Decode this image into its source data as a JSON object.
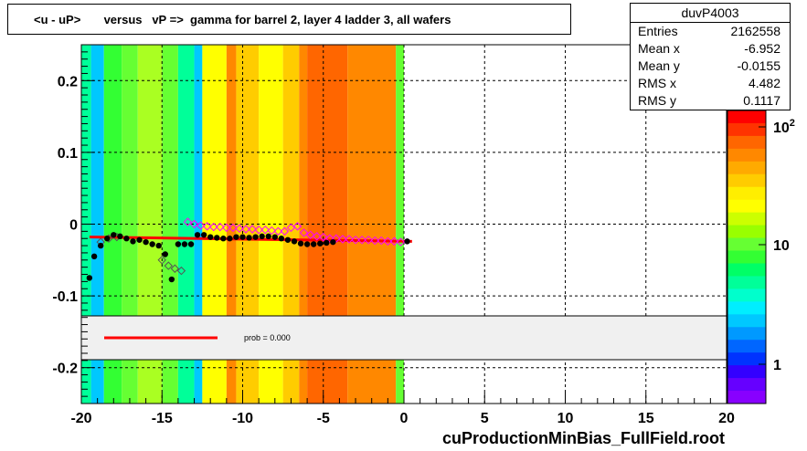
{
  "title": "<u - uP>       versus   vP =>  gamma for barrel 2, layer 4 ladder 3, all wafers",
  "stats": {
    "name": "duvP4003",
    "rows": [
      {
        "label": "Entries",
        "value": "2162558"
      },
      {
        "label": "Mean x",
        "value": "-6.952"
      },
      {
        "label": "Mean y",
        "value": "-0.0155"
      },
      {
        "label": "RMS x",
        "value": "4.482"
      },
      {
        "label": "RMS y",
        "value": "0.1117"
      }
    ]
  },
  "legend_text": "prob = 0.000",
  "footer": "cuProductionMinBias_FullField.root",
  "colors": {
    "fit_line": "#ff0000",
    "profile_black": "#000000",
    "profile_open": "#ff00ff"
  },
  "chart_data": {
    "type": "heatmap",
    "xlim": [
      -20,
      20
    ],
    "ylim": [
      -0.25,
      0.25
    ],
    "x_ticks": [
      "-20",
      "-15",
      "-10",
      "-5",
      "0",
      "5",
      "10",
      "15",
      "20"
    ],
    "y_ticks": [
      "0.2",
      "0.1",
      "0",
      "-0.1",
      "-0.2"
    ],
    "z_scale": "log",
    "z_ticks": [
      "1",
      "10",
      "10^2"
    ],
    "grid": true,
    "heat_columns": [
      {
        "x0": -20.0,
        "x1": -19.4,
        "color": "#00ff99"
      },
      {
        "x0": -19.4,
        "x1": -18.6,
        "color": "#00c8ff"
      },
      {
        "x0": -18.6,
        "x1": -17.5,
        "color": "#33ff33"
      },
      {
        "x0": -17.5,
        "x1": -16.5,
        "color": "#66ff33"
      },
      {
        "x0": -16.5,
        "x1": -15.0,
        "color": "#aaff22"
      },
      {
        "x0": -15.0,
        "x1": -14.0,
        "color": "#66ff33"
      },
      {
        "x0": -14.0,
        "x1": -13.0,
        "color": "#00ff99"
      },
      {
        "x0": -13.0,
        "x1": -12.5,
        "color": "#00c8ff"
      },
      {
        "x0": -12.5,
        "x1": -11.0,
        "color": "#ffff00"
      },
      {
        "x0": -11.0,
        "x1": -10.4,
        "color": "#ff8800"
      },
      {
        "x0": -10.4,
        "x1": -9.0,
        "color": "#ffcc00"
      },
      {
        "x0": -9.0,
        "x1": -7.5,
        "color": "#ffff00"
      },
      {
        "x0": -7.5,
        "x1": -6.5,
        "color": "#ffcc00"
      },
      {
        "x0": -6.5,
        "x1": -6.0,
        "color": "#ff8800"
      },
      {
        "x0": -6.0,
        "x1": -3.5,
        "color": "#ff6600"
      },
      {
        "x0": -3.5,
        "x1": -0.5,
        "color": "#ff8800"
      },
      {
        "x0": -0.5,
        "x1": 0.0,
        "color": "#66ff33"
      }
    ],
    "series": [
      {
        "name": "profile_filled",
        "x": [
          -19.5,
          -19.2,
          -18.8,
          -18.4,
          -18.0,
          -17.6,
          -17.2,
          -16.8,
          -16.4,
          -16.0,
          -15.6,
          -15.2,
          -14.8,
          -14.4,
          -14.0,
          -13.6,
          -13.2,
          -12.8,
          -12.4,
          -12.0,
          -11.6,
          -11.2,
          -10.8,
          -10.4,
          -10.0,
          -9.6,
          -9.2,
          -8.8,
          -8.4,
          -8.0,
          -7.6,
          -7.2,
          -6.8,
          -6.4,
          -6.0,
          -5.6,
          -5.2,
          -4.8,
          -4.4,
          0.2
        ],
        "y": [
          -0.075,
          -0.045,
          -0.03,
          -0.02,
          -0.015,
          -0.017,
          -0.02,
          -0.024,
          -0.022,
          -0.025,
          -0.028,
          -0.03,
          -0.042,
          -0.077,
          -0.028,
          -0.028,
          -0.028,
          -0.015,
          -0.015,
          -0.018,
          -0.019,
          -0.02,
          -0.02,
          -0.018,
          -0.018,
          -0.019,
          -0.018,
          -0.017,
          -0.017,
          -0.018,
          -0.02,
          -0.022,
          -0.024,
          -0.027,
          -0.028,
          -0.028,
          -0.027,
          -0.026,
          -0.025,
          -0.024
        ]
      },
      {
        "name": "profile_open",
        "x": [
          -18.8,
          -18.3,
          -17.8,
          -15.0,
          -14.6,
          -14.2,
          -13.8,
          -13.4,
          -13.0,
          -12.6,
          -12.2,
          -11.8,
          -11.4,
          -11.0,
          -10.6,
          -10.2,
          -9.8,
          -9.4,
          -9.0,
          -8.6,
          -8.2,
          -7.8,
          -7.4,
          -7.0,
          -6.6,
          -6.2,
          -5.8,
          -5.4,
          -5.0,
          -4.6,
          -4.2,
          -3.8,
          -3.4,
          -3.0,
          -2.6,
          -2.2,
          -1.8,
          -1.4,
          -1.0,
          -0.6,
          -0.2
        ],
        "y": [
          -0.025,
          -0.02,
          -0.018,
          -0.05,
          -0.058,
          -0.062,
          -0.065,
          0.003,
          0.0,
          -0.002,
          -0.003,
          -0.004,
          -0.004,
          -0.005,
          -0.005,
          -0.006,
          -0.007,
          -0.007,
          -0.008,
          -0.008,
          -0.009,
          -0.01,
          -0.01,
          -0.005,
          -0.003,
          -0.012,
          -0.015,
          -0.017,
          -0.018,
          -0.02,
          -0.02,
          -0.021,
          -0.021,
          -0.022,
          -0.022,
          -0.022,
          -0.023,
          -0.023,
          -0.024,
          -0.024,
          -0.025
        ]
      },
      {
        "name": "fit",
        "x": [
          -19.5,
          0.5
        ],
        "y": [
          -0.018,
          -0.024
        ]
      }
    ]
  }
}
